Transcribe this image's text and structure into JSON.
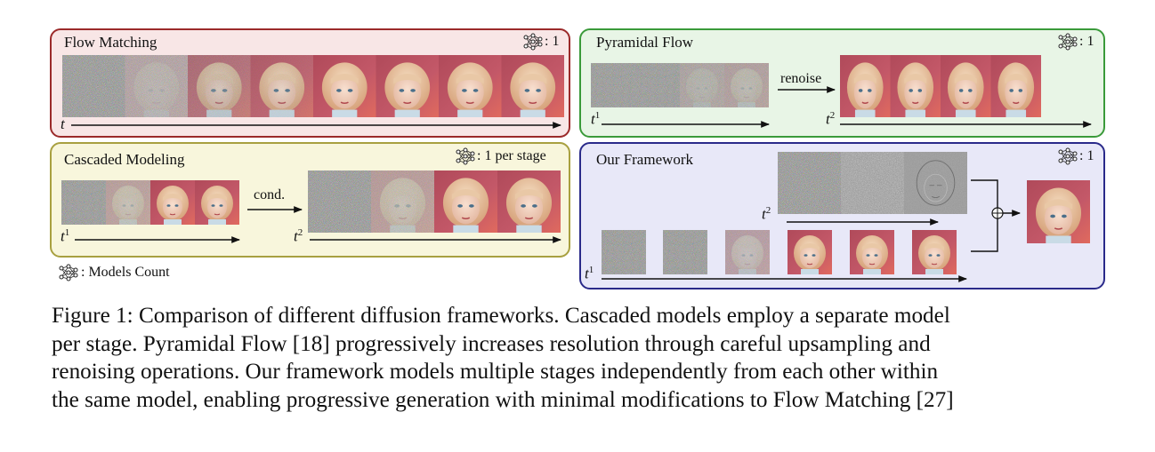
{
  "panels": {
    "flow_matching": {
      "title": "Flow Matching",
      "count": ": 1",
      "time_label": "t"
    },
    "pyramidal_flow": {
      "title": "Pyramidal Flow",
      "count": ": 1",
      "arrow_label": "renoise",
      "time_label_1": "t",
      "sup_1": "1",
      "time_label_2": "t",
      "sup_2": "2"
    },
    "cascaded_modeling": {
      "title": "Cascaded Modeling",
      "count": ": 1 per stage",
      "arrow_label": "cond.",
      "time_label_1": "t",
      "sup_1": "1",
      "time_label_2": "t",
      "sup_2": "2"
    },
    "our_framework": {
      "title": "Our Framework",
      "count": ": 1",
      "time_label_1": "t",
      "sup_1": "1",
      "time_label_2": "t",
      "sup_2": "2"
    }
  },
  "legend": {
    "text": ": Models Count"
  },
  "icon": "neural-network-icon",
  "caption": [
    "Figure 1: Comparison of different diffusion frameworks. Cascaded models employ a separate model",
    "per stage. Pyramidal Flow [18] progressively increases resolution through careful upsampling and",
    "renoising operations. Our framework models multiple stages independently from each other within",
    "the same model, enabling progressive generation with minimal modifications to Flow Matching [27]"
  ]
}
